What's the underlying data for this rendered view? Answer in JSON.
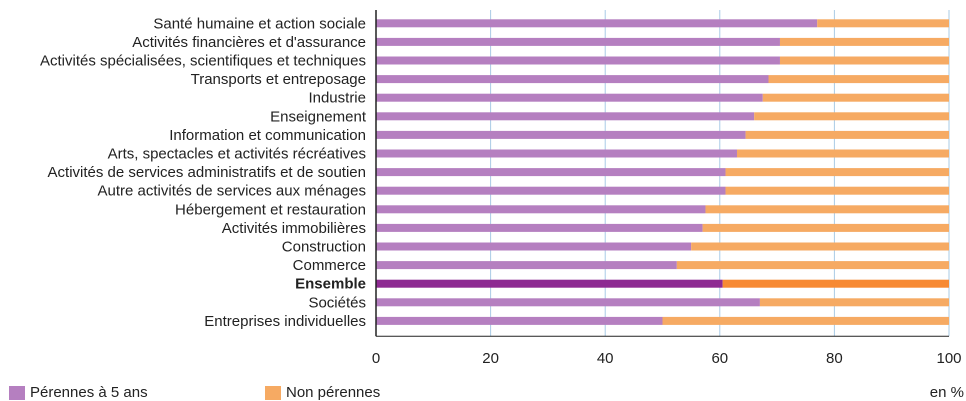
{
  "chart_data": {
    "type": "bar",
    "orientation": "horizontal",
    "stacked": true,
    "title": "",
    "unit": "en %",
    "categories": [
      "Santé humaine et action sociale",
      "Activités financières et d'assurance",
      "Activités spécialisées, scientifiques et techniques",
      "Transports et entreposage",
      "Industrie",
      "Enseignement",
      "Information et communication",
      "Arts, spectacles et activités récréatives",
      "Activités de services administratifs et de soutien",
      "Autre activités de services aux ménages",
      "Hébergement et restauration",
      "Activités immobilières",
      "Construction",
      "Commerce",
      "Ensemble",
      "Sociétés",
      "Entreprises individuelles"
    ],
    "highlight_category": "Ensemble",
    "series": [
      {
        "name": "Pérennes à 5 ans",
        "color": "#b57fc0",
        "highlight_color": "#8e2a92",
        "values": [
          77,
          70.5,
          70.5,
          68.5,
          67.5,
          66,
          64.5,
          63,
          61,
          61,
          57.5,
          57,
          55,
          52.5,
          60.5,
          67,
          50
        ]
      },
      {
        "name": "Non pérennes",
        "color": "#f6aa63",
        "highlight_color": "#f78a34",
        "values": [
          23,
          29.5,
          29.5,
          31.5,
          32.5,
          34,
          35.5,
          37,
          39,
          39,
          42.5,
          43,
          45,
          47.5,
          39.5,
          33,
          50
        ]
      }
    ],
    "x_ticks": [
      "0",
      "20",
      "40",
      "60",
      "80",
      "100"
    ],
    "xlim": [
      0,
      100
    ],
    "grid": true,
    "legend_position": "bottom-left"
  }
}
